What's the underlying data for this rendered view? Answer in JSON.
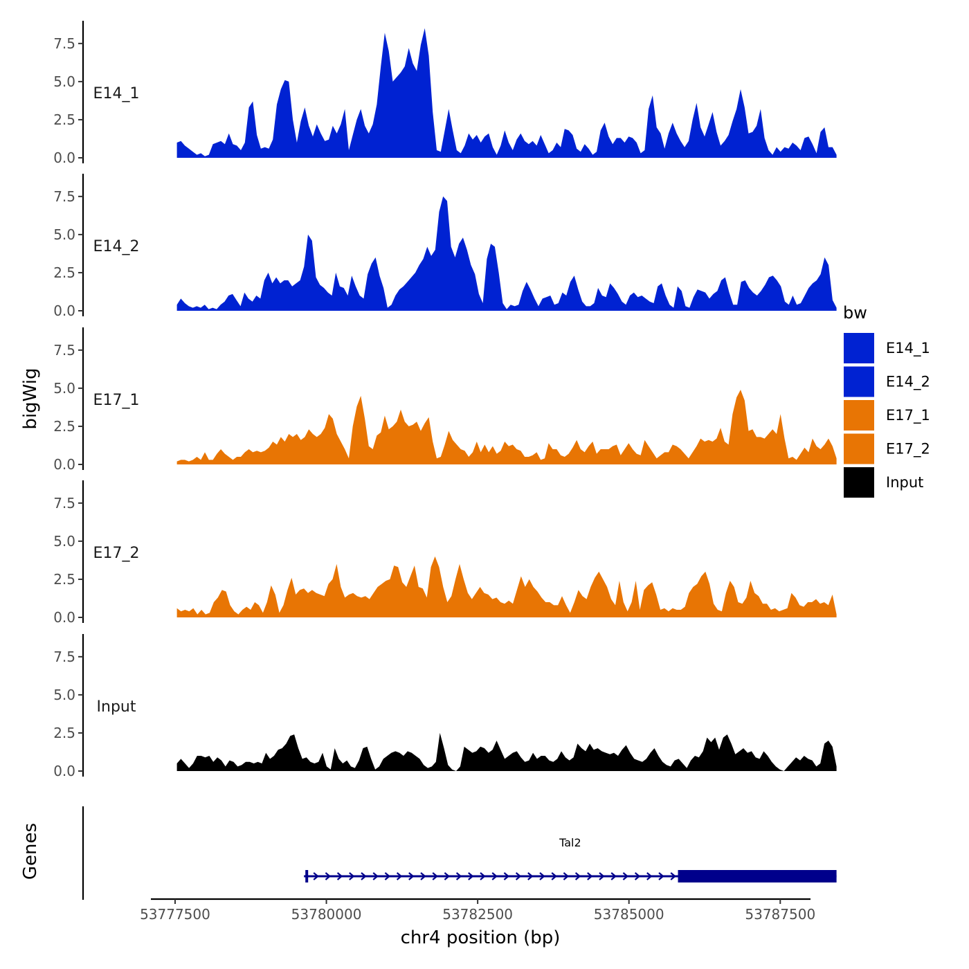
{
  "chart_data": {
    "type": "area",
    "y_axis_title": "bigWig",
    "x_axis_title": "chr4 position (bp)",
    "gene_axis_title": "Genes",
    "x_range": [
      53777100,
      53788000
    ],
    "x_ticks": [
      53777500,
      53780000,
      53782500,
      53785000,
      53787500
    ],
    "x_tick_labels": [
      "53777500",
      "53780000",
      "53782500",
      "53785000",
      "53787500"
    ],
    "y_range": [
      0,
      8.9
    ],
    "y_ticks": [
      0,
      2.5,
      5,
      7.5
    ],
    "y_tick_labels": [
      "0.0",
      "2.5",
      "5.0",
      "7.5"
    ],
    "x_start": 53777530,
    "x_end": 53788430,
    "legend": {
      "title": "bw",
      "entries": [
        {
          "label": "E14_1",
          "color": "#0022D2"
        },
        {
          "label": "E14_2",
          "color": "#0022D2"
        },
        {
          "label": "E17_1",
          "color": "#E87504"
        },
        {
          "label": "E17_2",
          "color": "#E87504"
        },
        {
          "label": "Input",
          "color": "#000000"
        }
      ]
    },
    "series": [
      {
        "name": "E14_1",
        "color": "#0022D2",
        "values": [
          1.0,
          1.1,
          0.8,
          0.6,
          0.4,
          0.2,
          0.3,
          0.1,
          0.2,
          0.9,
          1.0,
          1.1,
          0.9,
          1.6,
          0.9,
          0.8,
          0.5,
          1.0,
          3.3,
          3.7,
          1.5,
          0.6,
          0.7,
          0.6,
          1.2,
          3.5,
          4.5,
          5.1,
          5.0,
          2.5,
          1.0,
          2.4,
          3.3,
          2.1,
          1.4,
          2.2,
          1.6,
          1.1,
          1.2,
          2.1,
          1.6,
          2.2,
          3.2,
          0.5,
          1.5,
          2.5,
          3.2,
          2.1,
          1.6,
          2.2,
          3.5,
          6.0,
          8.2,
          7.0,
          5.0,
          5.3,
          5.6,
          6.0,
          7.2,
          6.2,
          5.7,
          7.4,
          8.5,
          6.7,
          3.0,
          0.5,
          0.4,
          1.8,
          3.2,
          1.8,
          0.5,
          0.3,
          0.8,
          1.6,
          1.2,
          1.5,
          1.0,
          1.4,
          1.6,
          0.7,
          0.2,
          0.8,
          1.8,
          1.0,
          0.5,
          1.2,
          1.6,
          1.1,
          0.9,
          1.1,
          0.8,
          1.5,
          0.9,
          0.3,
          0.5,
          1.0,
          0.7,
          1.9,
          1.8,
          1.5,
          0.6,
          0.4,
          0.9,
          0.6,
          0.2,
          0.4,
          1.8,
          2.3,
          1.4,
          0.9,
          1.3,
          1.3,
          1.0,
          1.4,
          1.3,
          1.0,
          0.3,
          0.5,
          3.2,
          4.1,
          2.0,
          1.6,
          0.6,
          1.6,
          2.3,
          1.6,
          1.1,
          0.7,
          1.1,
          2.5,
          3.6,
          2.0,
          1.4,
          2.2,
          3.0,
          1.7,
          0.8,
          1.1,
          1.5,
          2.4,
          3.2,
          4.5,
          3.3,
          1.6,
          1.7,
          2.1,
          3.2,
          1.3,
          0.5,
          0.2,
          0.7,
          0.4,
          0.7,
          0.6,
          1.0,
          0.8,
          0.5,
          1.3,
          1.4,
          0.9,
          0.3,
          1.7,
          2.0,
          0.7,
          0.7,
          0.2
        ]
      },
      {
        "name": "E14_2",
        "color": "#0022D2",
        "values": [
          0.4,
          0.8,
          0.5,
          0.3,
          0.2,
          0.3,
          0.2,
          0.4,
          0.1,
          0.2,
          0.1,
          0.4,
          0.6,
          1.0,
          1.1,
          0.7,
          0.3,
          1.2,
          0.8,
          0.6,
          1.0,
          0.8,
          2.0,
          2.5,
          1.8,
          2.2,
          1.8,
          2.0,
          2.0,
          1.6,
          1.8,
          2.0,
          2.9,
          5.0,
          4.6,
          2.2,
          1.7,
          1.5,
          1.2,
          1.0,
          2.5,
          1.6,
          1.5,
          1.0,
          2.3,
          1.6,
          1.0,
          0.8,
          2.4,
          3.1,
          3.5,
          2.3,
          1.5,
          0.2,
          0.4,
          1.0,
          1.4,
          1.6,
          1.9,
          2.2,
          2.5,
          3.0,
          3.4,
          4.2,
          3.6,
          4.0,
          6.5,
          7.5,
          7.2,
          4.2,
          3.5,
          4.4,
          4.8,
          4.0,
          3.0,
          2.4,
          1.1,
          0.5,
          3.4,
          4.4,
          4.2,
          2.5,
          0.5,
          0.1,
          0.4,
          0.3,
          0.4,
          1.3,
          1.9,
          1.4,
          0.8,
          0.3,
          0.8,
          0.9,
          1.0,
          0.4,
          0.5,
          1.2,
          1.0,
          1.9,
          2.3,
          1.4,
          0.6,
          0.3,
          0.3,
          0.5,
          1.5,
          1.0,
          0.9,
          1.8,
          1.5,
          1.1,
          0.6,
          0.4,
          1.0,
          1.2,
          0.9,
          1.0,
          0.8,
          0.6,
          0.5,
          1.6,
          1.8,
          1.0,
          0.4,
          0.2,
          1.6,
          1.3,
          0.3,
          0.2,
          0.9,
          1.4,
          1.3,
          1.2,
          0.8,
          1.1,
          1.3,
          2.0,
          2.2,
          1.2,
          0.4,
          0.4,
          1.9,
          2.0,
          1.5,
          1.2,
          1.0,
          1.3,
          1.7,
          2.2,
          2.3,
          2.0,
          1.6,
          0.6,
          0.4,
          1.0,
          0.4,
          0.5,
          1.0,
          1.5,
          1.8,
          2.0,
          2.4,
          3.5,
          3.0,
          0.7,
          0.2
        ]
      },
      {
        "name": "E17_1",
        "color": "#E87504",
        "values": [
          0.2,
          0.3,
          0.3,
          0.2,
          0.3,
          0.5,
          0.3,
          0.8,
          0.3,
          0.3,
          0.7,
          1.0,
          0.7,
          0.5,
          0.3,
          0.5,
          0.5,
          0.8,
          1.0,
          0.8,
          0.9,
          0.8,
          0.9,
          1.1,
          1.5,
          1.3,
          1.8,
          1.5,
          2.0,
          1.8,
          2.0,
          1.6,
          1.8,
          2.3,
          2.0,
          1.8,
          2.0,
          2.4,
          3.3,
          3.0,
          2.0,
          1.5,
          1.0,
          0.4,
          2.5,
          3.8,
          4.5,
          3.0,
          1.2,
          1.0,
          1.9,
          2.1,
          3.2,
          2.3,
          2.5,
          2.8,
          3.6,
          2.8,
          2.5,
          2.6,
          2.8,
          2.2,
          2.7,
          3.1,
          1.5,
          0.4,
          0.5,
          1.3,
          2.2,
          1.6,
          1.3,
          1.0,
          0.9,
          0.5,
          0.8,
          1.5,
          0.8,
          1.3,
          0.8,
          1.2,
          0.7,
          0.9,
          1.5,
          1.2,
          1.3,
          1.0,
          0.9,
          0.5,
          0.5,
          0.6,
          0.8,
          0.3,
          0.4,
          1.4,
          1.0,
          1.0,
          0.6,
          0.5,
          0.7,
          1.1,
          1.6,
          1.0,
          0.8,
          1.2,
          1.5,
          0.7,
          1.0,
          1.0,
          1.0,
          1.2,
          1.3,
          0.6,
          1.0,
          1.4,
          1.0,
          0.7,
          0.6,
          1.6,
          1.2,
          0.8,
          0.4,
          0.6,
          0.8,
          0.8,
          1.3,
          1.2,
          1.0,
          0.7,
          0.4,
          0.8,
          1.2,
          1.7,
          1.5,
          1.6,
          1.5,
          1.7,
          2.4,
          1.5,
          1.3,
          3.3,
          4.4,
          4.9,
          4.2,
          2.2,
          2.3,
          1.8,
          1.8,
          1.7,
          2.0,
          2.3,
          2.0,
          3.3,
          1.7,
          0.4,
          0.5,
          0.3,
          0.7,
          1.1,
          0.8,
          1.7,
          1.2,
          1.0,
          1.3,
          1.7,
          1.2,
          0.4
        ]
      },
      {
        "name": "E17_2",
        "color": "#E87504",
        "values": [
          0.6,
          0.4,
          0.5,
          0.4,
          0.6,
          0.2,
          0.5,
          0.2,
          0.3,
          1.0,
          1.3,
          1.8,
          1.7,
          0.8,
          0.4,
          0.2,
          0.5,
          0.7,
          0.5,
          1.0,
          0.8,
          0.3,
          1.0,
          2.1,
          1.5,
          0.3,
          0.8,
          1.8,
          2.6,
          1.5,
          1.8,
          1.9,
          1.6,
          1.8,
          1.6,
          1.5,
          1.4,
          2.2,
          2.5,
          3.5,
          2.0,
          1.3,
          1.5,
          1.6,
          1.4,
          1.3,
          1.4,
          1.2,
          1.6,
          2.0,
          2.2,
          2.4,
          2.5,
          3.4,
          3.3,
          2.3,
          2.0,
          2.7,
          3.4,
          2.0,
          1.9,
          1.3,
          3.3,
          4.0,
          3.3,
          2.0,
          1.0,
          1.4,
          2.5,
          3.5,
          2.5,
          1.6,
          1.2,
          1.6,
          2.0,
          1.6,
          1.5,
          1.2,
          1.3,
          1.0,
          0.9,
          1.1,
          0.9,
          1.8,
          2.7,
          2.0,
          2.5,
          2.0,
          1.7,
          1.3,
          1.0,
          1.0,
          0.8,
          0.8,
          1.4,
          0.8,
          0.3,
          1.0,
          1.8,
          1.4,
          1.2,
          2.0,
          2.6,
          3.0,
          2.5,
          2.0,
          1.2,
          0.8,
          2.4,
          1.0,
          0.4,
          1.0,
          2.4,
          0.5,
          1.8,
          2.1,
          2.3,
          1.5,
          0.5,
          0.6,
          0.4,
          0.6,
          0.5,
          0.5,
          0.7,
          1.6,
          2.0,
          2.2,
          2.7,
          3.0,
          2.2,
          0.9,
          0.5,
          0.4,
          1.6,
          2.4,
          2.0,
          1.0,
          0.9,
          1.3,
          2.4,
          1.6,
          1.4,
          0.9,
          0.9,
          0.5,
          0.6,
          0.4,
          0.5,
          0.6,
          1.6,
          1.3,
          0.8,
          0.7,
          1.0,
          1.0,
          1.2,
          0.9,
          1.0,
          0.8,
          1.5,
          0.2
        ]
      },
      {
        "name": "Input",
        "color": "#000000",
        "values": [
          0.5,
          0.8,
          0.5,
          0.2,
          0.5,
          1.0,
          1.0,
          0.9,
          1.0,
          0.6,
          0.9,
          0.7,
          0.3,
          0.7,
          0.6,
          0.3,
          0.4,
          0.6,
          0.6,
          0.5,
          0.6,
          0.5,
          1.2,
          0.8,
          1.0,
          1.4,
          1.5,
          1.8,
          2.3,
          2.4,
          1.5,
          0.8,
          0.9,
          0.6,
          0.5,
          0.6,
          1.2,
          0.3,
          0.1,
          1.5,
          0.8,
          0.5,
          0.7,
          0.3,
          0.2,
          0.7,
          1.5,
          1.6,
          0.8,
          0.1,
          0.3,
          0.8,
          1.0,
          1.2,
          1.3,
          1.2,
          1.0,
          1.3,
          1.2,
          1.0,
          0.8,
          0.4,
          0.2,
          0.3,
          0.6,
          2.5,
          1.5,
          0.4,
          0.1,
          0.0,
          0.3,
          1.6,
          1.4,
          1.2,
          1.3,
          1.6,
          1.5,
          1.2,
          1.4,
          2.0,
          1.4,
          0.8,
          1.0,
          1.2,
          1.3,
          0.9,
          0.6,
          0.7,
          1.2,
          0.8,
          1.0,
          1.0,
          0.7,
          0.6,
          0.8,
          1.3,
          0.9,
          0.7,
          0.9,
          1.8,
          1.5,
          1.3,
          1.8,
          1.4,
          1.5,
          1.3,
          1.2,
          1.1,
          1.2,
          1.0,
          1.4,
          1.7,
          1.2,
          0.8,
          0.7,
          0.6,
          0.8,
          1.2,
          1.5,
          1.0,
          0.6,
          0.4,
          0.3,
          0.7,
          0.8,
          0.5,
          0.2,
          0.7,
          1.0,
          0.9,
          1.3,
          2.2,
          1.9,
          2.2,
          1.4,
          2.2,
          2.4,
          1.8,
          1.1,
          1.3,
          1.5,
          1.2,
          1.3,
          0.9,
          0.8,
          1.3,
          1.0,
          0.6,
          0.3,
          0.1,
          0.0,
          0.3,
          0.6,
          0.9,
          0.7,
          1.0,
          0.8,
          0.7,
          0.3,
          0.5,
          1.8,
          2.0,
          1.6,
          0.3
        ]
      }
    ],
    "gene": {
      "name": "Tal2",
      "strand": "+",
      "start": 53779630,
      "end": 53788430,
      "thick_start": 53785810,
      "thick_end": 53788430,
      "color": "#00008B"
    }
  }
}
